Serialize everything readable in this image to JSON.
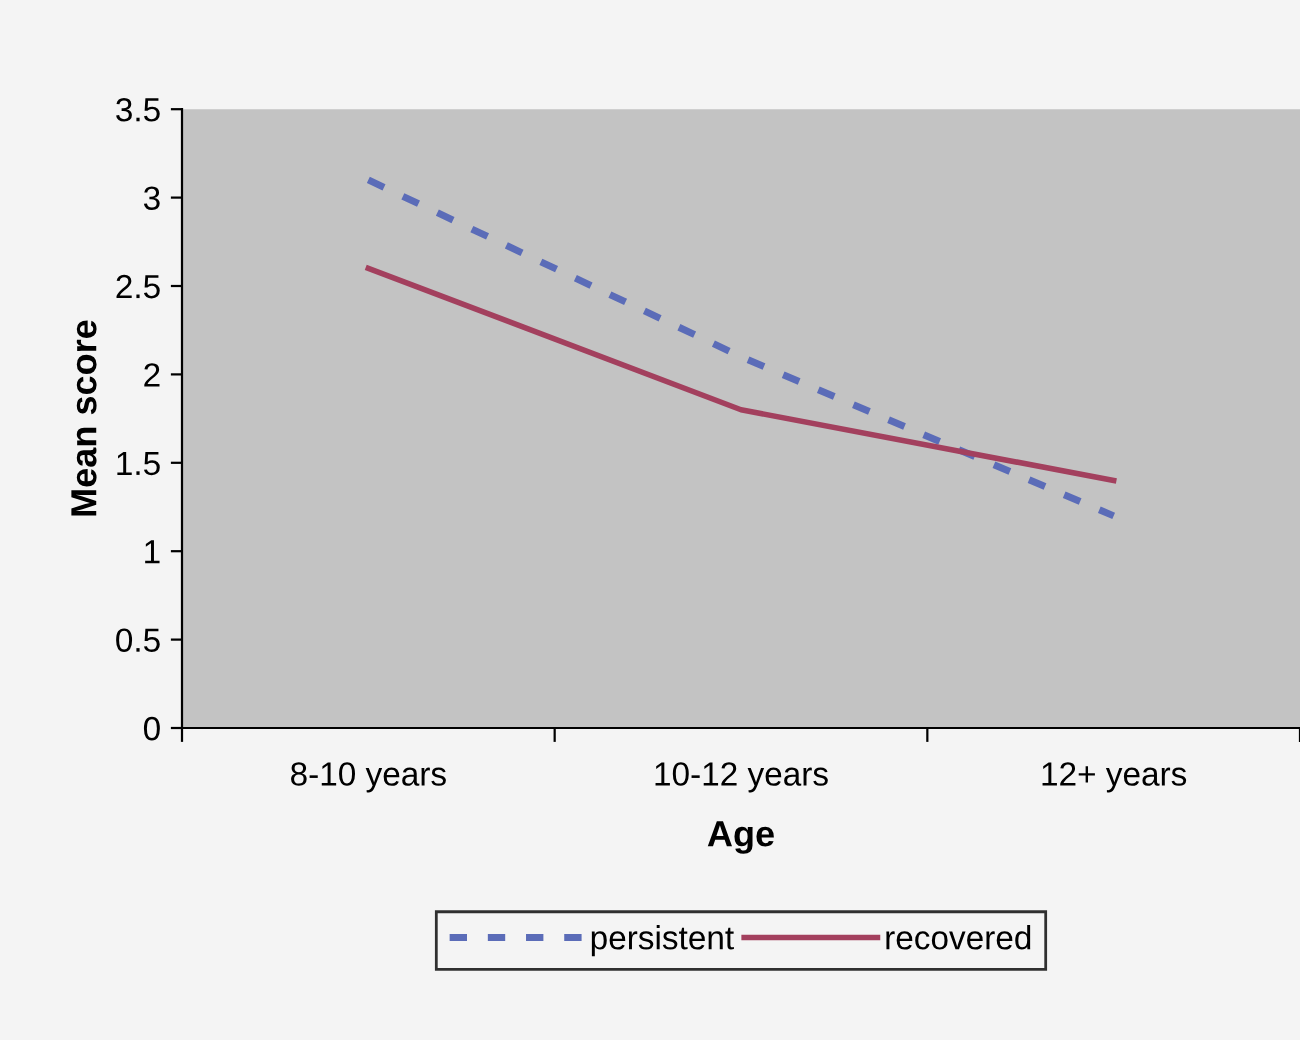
{
  "chart_data": {
    "type": "line",
    "xlabel": "Age",
    "ylabel": "Mean score",
    "categories": [
      "8-10 years",
      "10-12 years",
      "12+ years"
    ],
    "series": [
      {
        "name": "persistent",
        "color": "#5b6cb8",
        "values": [
          3.1,
          2.1,
          1.2
        ],
        "line_style": "dashed"
      },
      {
        "name": "recovered",
        "color": "#a3405e",
        "values": [
          2.6,
          1.8,
          1.4
        ],
        "line_style": "solid"
      }
    ],
    "ylim": [
      0,
      3.5
    ],
    "yticks": [
      0,
      0.5,
      1,
      1.5,
      2,
      2.5,
      3,
      3.5
    ],
    "grid": false,
    "legend": "bottom",
    "marker": "none"
  }
}
